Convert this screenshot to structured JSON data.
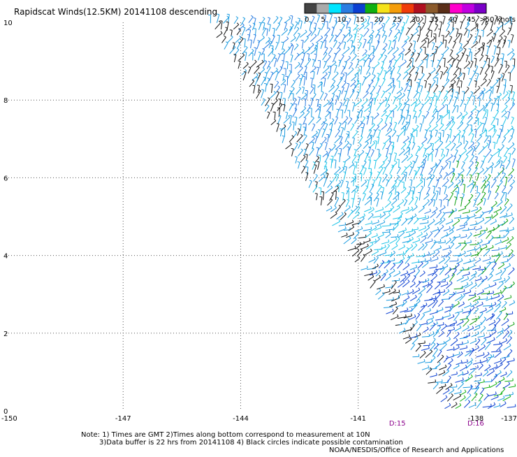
{
  "chart_data": {
    "type": "scatter",
    "title": "Rapidscat Winds(12.5KM) 20141108 descending",
    "xlim": [
      -150,
      -137
    ],
    "ylim": [
      0,
      10
    ],
    "x_ticks": [
      "-150",
      "-147",
      "-144",
      "-141",
      "-138",
      "-137"
    ],
    "y_ticks": [
      "0",
      "2",
      "4",
      "6",
      "8",
      "10"
    ],
    "grid": true,
    "legend_position": "top-right",
    "colorbar": {
      "labels": [
        "0",
        "5",
        "10",
        "15",
        "20",
        "25",
        "30",
        "35",
        "40",
        "45",
        ">50 knots"
      ],
      "colors": [
        "#444444",
        "#aaaaaa",
        "#00e5ff",
        "#2a7de1",
        "#0b3fd1",
        "#10b010",
        "#f5e21b",
        "#f59d0a",
        "#f03c0a",
        "#b01020",
        "#8b5a2b",
        "#5a2e18",
        "#ff00cc",
        "#c000e0",
        "#7a00c8"
      ]
    },
    "time_labels": [
      {
        "label": "D:15",
        "x": -140.0
      },
      {
        "label": "D:16",
        "x": -138.0
      }
    ],
    "time_label_color": "#8b008b"
  },
  "notes": {
    "line1": "Note: 1) Times are GMT 2)Times along bottom correspond to measurement at 10N",
    "line2": "3)Data buffer is 22 hrs from 20141108 4) Black circles indicate possible contamination",
    "line3": "NOAA/NESDIS/Office of Research and Applications"
  }
}
